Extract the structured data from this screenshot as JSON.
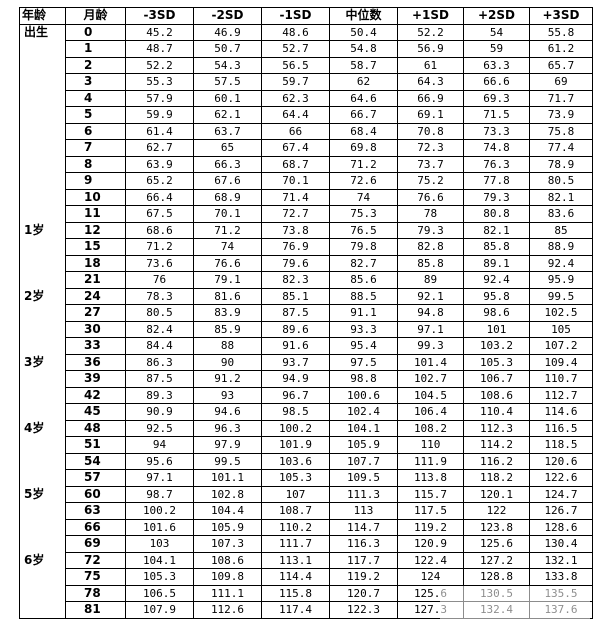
{
  "headers": [
    "年龄",
    "月龄",
    "-3SD",
    "-2SD",
    "-1SD",
    "中位数",
    "+1SD",
    "+2SD",
    "+3SD"
  ],
  "rows": [
    {
      "age": "出生",
      "month": "0",
      "v": [
        "45.2",
        "46.9",
        "48.6",
        "50.4",
        "52.2",
        "54",
        "55.8"
      ]
    },
    {
      "age": "",
      "month": "1",
      "v": [
        "48.7",
        "50.7",
        "52.7",
        "54.8",
        "56.9",
        "59",
        "61.2"
      ]
    },
    {
      "age": "",
      "month": "2",
      "v": [
        "52.2",
        "54.3",
        "56.5",
        "58.7",
        "61",
        "63.3",
        "65.7"
      ]
    },
    {
      "age": "",
      "month": "3",
      "v": [
        "55.3",
        "57.5",
        "59.7",
        "62",
        "64.3",
        "66.6",
        "69"
      ]
    },
    {
      "age": "",
      "month": "4",
      "v": [
        "57.9",
        "60.1",
        "62.3",
        "64.6",
        "66.9",
        "69.3",
        "71.7"
      ]
    },
    {
      "age": "",
      "month": "5",
      "v": [
        "59.9",
        "62.1",
        "64.4",
        "66.7",
        "69.1",
        "71.5",
        "73.9"
      ]
    },
    {
      "age": "",
      "month": "6",
      "v": [
        "61.4",
        "63.7",
        "66",
        "68.4",
        "70.8",
        "73.3",
        "75.8"
      ]
    },
    {
      "age": "",
      "month": "7",
      "v": [
        "62.7",
        "65",
        "67.4",
        "69.8",
        "72.3",
        "74.8",
        "77.4"
      ]
    },
    {
      "age": "",
      "month": "8",
      "v": [
        "63.9",
        "66.3",
        "68.7",
        "71.2",
        "73.7",
        "76.3",
        "78.9"
      ]
    },
    {
      "age": "",
      "month": "9",
      "v": [
        "65.2",
        "67.6",
        "70.1",
        "72.6",
        "75.2",
        "77.8",
        "80.5"
      ]
    },
    {
      "age": "",
      "month": "10",
      "v": [
        "66.4",
        "68.9",
        "71.4",
        "74",
        "76.6",
        "79.3",
        "82.1"
      ]
    },
    {
      "age": "",
      "month": "11",
      "v": [
        "67.5",
        "70.1",
        "72.7",
        "75.3",
        "78",
        "80.8",
        "83.6"
      ]
    },
    {
      "age": "1岁",
      "month": "12",
      "v": [
        "68.6",
        "71.2",
        "73.8",
        "76.5",
        "79.3",
        "82.1",
        "85"
      ]
    },
    {
      "age": "",
      "month": "15",
      "v": [
        "71.2",
        "74",
        "76.9",
        "79.8",
        "82.8",
        "85.8",
        "88.9"
      ]
    },
    {
      "age": "",
      "month": "18",
      "v": [
        "73.6",
        "76.6",
        "79.6",
        "82.7",
        "85.8",
        "89.1",
        "92.4"
      ]
    },
    {
      "age": "",
      "month": "21",
      "v": [
        "76",
        "79.1",
        "82.3",
        "85.6",
        "89",
        "92.4",
        "95.9"
      ]
    },
    {
      "age": "2岁",
      "month": "24",
      "v": [
        "78.3",
        "81.6",
        "85.1",
        "88.5",
        "92.1",
        "95.8",
        "99.5"
      ]
    },
    {
      "age": "",
      "month": "27",
      "v": [
        "80.5",
        "83.9",
        "87.5",
        "91.1",
        "94.8",
        "98.6",
        "102.5"
      ]
    },
    {
      "age": "",
      "month": "30",
      "v": [
        "82.4",
        "85.9",
        "89.6",
        "93.3",
        "97.1",
        "101",
        "105"
      ]
    },
    {
      "age": "",
      "month": "33",
      "v": [
        "84.4",
        "88",
        "91.6",
        "95.4",
        "99.3",
        "103.2",
        "107.2"
      ]
    },
    {
      "age": "3岁",
      "month": "36",
      "v": [
        "86.3",
        "90",
        "93.7",
        "97.5",
        "101.4",
        "105.3",
        "109.4"
      ]
    },
    {
      "age": "",
      "month": "39",
      "v": [
        "87.5",
        "91.2",
        "94.9",
        "98.8",
        "102.7",
        "106.7",
        "110.7"
      ]
    },
    {
      "age": "",
      "month": "42",
      "v": [
        "89.3",
        "93",
        "96.7",
        "100.6",
        "104.5",
        "108.6",
        "112.7"
      ]
    },
    {
      "age": "",
      "month": "45",
      "v": [
        "90.9",
        "94.6",
        "98.5",
        "102.4",
        "106.4",
        "110.4",
        "114.6"
      ]
    },
    {
      "age": "4岁",
      "month": "48",
      "v": [
        "92.5",
        "96.3",
        "100.2",
        "104.1",
        "108.2",
        "112.3",
        "116.5"
      ]
    },
    {
      "age": "",
      "month": "51",
      "v": [
        "94",
        "97.9",
        "101.9",
        "105.9",
        "110",
        "114.2",
        "118.5"
      ]
    },
    {
      "age": "",
      "month": "54",
      "v": [
        "95.6",
        "99.5",
        "103.6",
        "107.7",
        "111.9",
        "116.2",
        "120.6"
      ]
    },
    {
      "age": "",
      "month": "57",
      "v": [
        "97.1",
        "101.1",
        "105.3",
        "109.5",
        "113.8",
        "118.2",
        "122.6"
      ]
    },
    {
      "age": "5岁",
      "month": "60",
      "v": [
        "98.7",
        "102.8",
        "107",
        "111.3",
        "115.7",
        "120.1",
        "124.7"
      ]
    },
    {
      "age": "",
      "month": "63",
      "v": [
        "100.2",
        "104.4",
        "108.7",
        "113",
        "117.5",
        "122",
        "126.7"
      ]
    },
    {
      "age": "",
      "month": "66",
      "v": [
        "101.6",
        "105.9",
        "110.2",
        "114.7",
        "119.2",
        "123.8",
        "128.6"
      ]
    },
    {
      "age": "",
      "month": "69",
      "v": [
        "103",
        "107.3",
        "111.7",
        "116.3",
        "120.9",
        "125.6",
        "130.4"
      ]
    },
    {
      "age": "6岁",
      "month": "72",
      "v": [
        "104.1",
        "108.6",
        "113.1",
        "117.7",
        "122.4",
        "127.2",
        "132.1"
      ]
    },
    {
      "age": "",
      "month": "75",
      "v": [
        "105.3",
        "109.8",
        "114.4",
        "119.2",
        "124",
        "128.8",
        "133.8"
      ]
    },
    {
      "age": "",
      "month": "78",
      "v": [
        "106.5",
        "111.1",
        "115.8",
        "120.7",
        "125.6",
        "130.5",
        "135.5"
      ]
    },
    {
      "age": "",
      "month": "81",
      "v": [
        "107.9",
        "112.6",
        "117.4",
        "122.3",
        "127.3",
        "132.4",
        "137.6"
      ]
    }
  ]
}
